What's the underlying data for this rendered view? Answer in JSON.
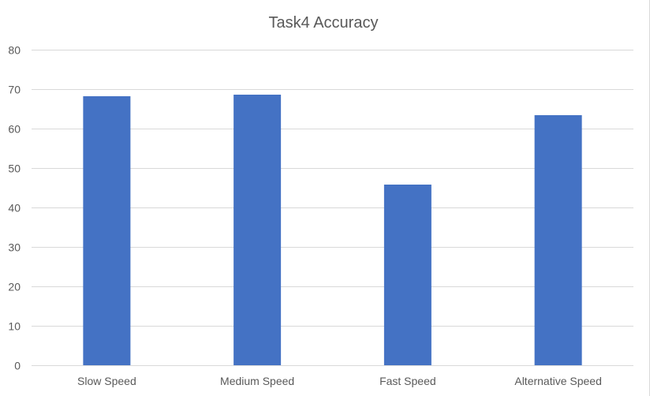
{
  "chart_data": {
    "type": "bar",
    "title": "Task4 Accuracy",
    "xlabel": "",
    "ylabel": "",
    "categories": [
      "Slow Speed",
      "Medium Speed",
      "Fast Speed",
      "Alternative Speed"
    ],
    "values": [
      68.2,
      68.6,
      45.8,
      63.4
    ],
    "ylim": [
      0,
      80
    ],
    "yticks": [
      0,
      10,
      20,
      30,
      40,
      50,
      60,
      70,
      80
    ],
    "grid": true,
    "legend": "none",
    "bar_color": "#4472c4"
  }
}
